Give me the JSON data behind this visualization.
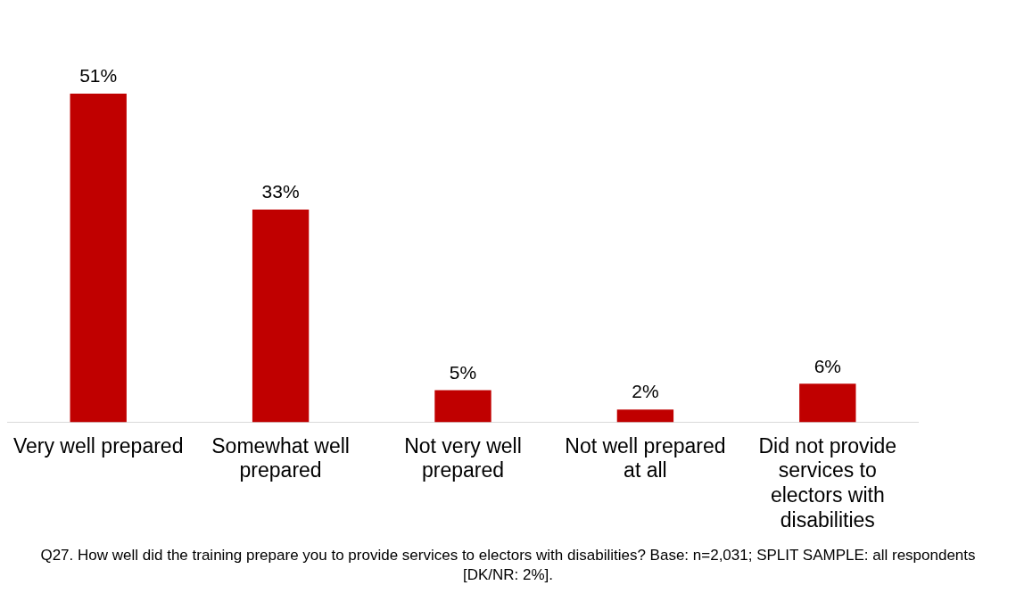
{
  "chart_data": {
    "type": "bar",
    "categories": [
      "Very well prepared",
      "Somewhat well prepared",
      "Not very well prepared",
      "Not well prepared at all",
      "Did not provide services to electors with disabilities"
    ],
    "values": [
      51,
      33,
      5,
      2,
      6
    ],
    "value_labels": [
      "51%",
      "33%",
      "5%",
      "2%",
      "6%"
    ],
    "color": "#c00000",
    "grid": false,
    "legend": false,
    "annotations": [
      "Q27. How well did the training prepare you to provide services to electors with disabilities? Base: n=2,031; SPLIT SAMPLE: all respondents [DK/NR: 2%]."
    ]
  }
}
